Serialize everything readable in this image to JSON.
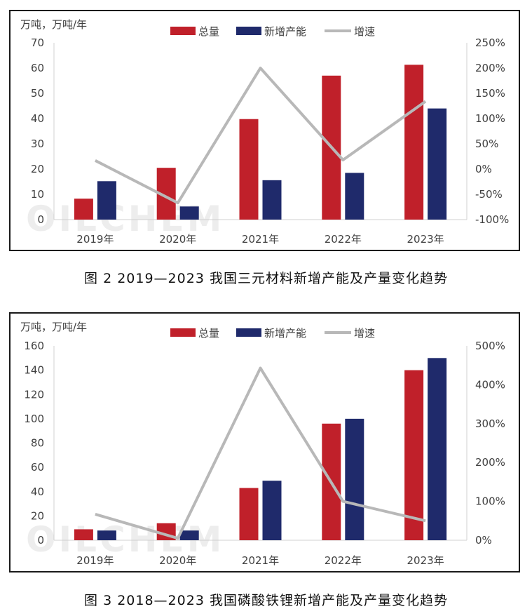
{
  "figures": [
    {
      "caption": "图 2  2019—2023 我国三元材料新增产能及产量变化趋势",
      "y_axis_title": "万吨，万吨/年",
      "watermark": "OILCHEM",
      "legend": [
        {
          "label": "总量",
          "color": "#c0202a",
          "kind": "bar"
        },
        {
          "label": "新增产能",
          "color": "#1f2a6b",
          "kind": "bar"
        },
        {
          "label": "增速",
          "color": "#b8b8b8",
          "kind": "line"
        }
      ]
    },
    {
      "caption": "图 3  2018—2023 我国磷酸铁锂新增产能及产量变化趋势",
      "y_axis_title": "万吨，万吨/年",
      "watermark": "OILCHEM",
      "legend": [
        {
          "label": "总量",
          "color": "#c0202a",
          "kind": "bar"
        },
        {
          "label": "新增产能",
          "color": "#1f2a6b",
          "kind": "bar"
        },
        {
          "label": "增速",
          "color": "#b8b8b8",
          "kind": "line"
        }
      ]
    }
  ],
  "chart_data": [
    {
      "type": "bar",
      "categories": [
        "2019年",
        "2020年",
        "2021年",
        "2022年",
        "2023年"
      ],
      "series": [
        {
          "name": "总量",
          "kind": "bar",
          "axis": "left",
          "color": "#c0202a",
          "values": [
            8.3,
            20.5,
            39.8,
            57.0,
            61.3
          ]
        },
        {
          "name": "新增产能",
          "kind": "bar",
          "axis": "left",
          "color": "#1f2a6b",
          "values": [
            15.2,
            5.2,
            15.6,
            18.5,
            44.0
          ]
        },
        {
          "name": "增速",
          "kind": "line",
          "axis": "right",
          "color": "#b8b8b8",
          "values": [
            17,
            -67,
            200,
            18,
            134
          ]
        }
      ],
      "y_left": {
        "min": 0,
        "max": 70,
        "ticks": [
          0,
          10,
          20,
          30,
          40,
          50,
          60,
          70
        ]
      },
      "y_right": {
        "min": -100,
        "max": 250,
        "ticks": [
          "-100%",
          "-50%",
          "0%",
          "50%",
          "100%",
          "150%",
          "200%",
          "250%"
        ],
        "tick_values": [
          -100,
          -50,
          0,
          50,
          100,
          150,
          200,
          250
        ]
      },
      "grid": false,
      "legend_position": "top"
    },
    {
      "type": "bar",
      "categories": [
        "2019年",
        "2020年",
        "2021年",
        "2022年",
        "2023年"
      ],
      "series": [
        {
          "name": "总量",
          "kind": "bar",
          "axis": "left",
          "color": "#c0202a",
          "values": [
            9,
            14,
            43,
            96,
            140
          ]
        },
        {
          "name": "新增产能",
          "kind": "bar",
          "axis": "left",
          "color": "#1f2a6b",
          "values": [
            8,
            8,
            49,
            100,
            150
          ]
        },
        {
          "name": "增速",
          "kind": "line",
          "axis": "right",
          "color": "#b8b8b8",
          "values": [
            67,
            5,
            443,
            100,
            50
          ]
        }
      ],
      "y_left": {
        "min": 0,
        "max": 160,
        "ticks": [
          0,
          20,
          40,
          60,
          80,
          100,
          120,
          140,
          160
        ]
      },
      "y_right": {
        "min": 0,
        "max": 500,
        "ticks": [
          "0%",
          "100%",
          "200%",
          "300%",
          "400%",
          "500%"
        ],
        "tick_values": [
          0,
          100,
          200,
          300,
          400,
          500
        ]
      },
      "grid": false,
      "legend_position": "top"
    }
  ]
}
